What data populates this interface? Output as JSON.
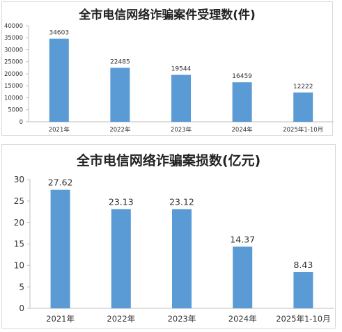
{
  "chart_data": [
    {
      "type": "bar",
      "title": "全市电信网络诈骗案件受理数(件)",
      "xlabel": "",
      "ylabel": "",
      "categories": [
        "2021年",
        "2022年",
        "2023年",
        "2024年",
        "2025年1-10月"
      ],
      "values": [
        34603,
        22485,
        19544,
        16459,
        12222
      ],
      "data_labels": [
        "34603",
        "22485",
        "19544",
        "16459",
        "12222"
      ],
      "ylim": [
        0,
        40000
      ],
      "yticks": [
        0,
        5000,
        10000,
        15000,
        20000,
        25000,
        30000,
        35000,
        40000
      ],
      "ytick_labels": [
        "0",
        "5000",
        "10000",
        "15000",
        "20000",
        "25000",
        "30000",
        "35000",
        "40000"
      ],
      "grid": false,
      "bar_color": "#5b9bd5"
    },
    {
      "type": "bar",
      "title": "全市电信网络诈骗案损数(亿元)",
      "xlabel": "",
      "ylabel": "",
      "categories": [
        "2021年",
        "2022年",
        "2023年",
        "2024年",
        "2025年1-10月"
      ],
      "values": [
        27.62,
        23.13,
        23.12,
        14.37,
        8.43
      ],
      "data_labels": [
        "27.62",
        "23.13",
        "23.12",
        "14.37",
        "8.43"
      ],
      "ylim": [
        0,
        30
      ],
      "yticks": [
        0,
        5,
        10,
        15,
        20,
        25,
        30
      ],
      "ytick_labels": [
        "0",
        "5",
        "10",
        "15",
        "20",
        "25",
        "30"
      ],
      "grid": false,
      "bar_color": "#5b9bd5"
    }
  ]
}
